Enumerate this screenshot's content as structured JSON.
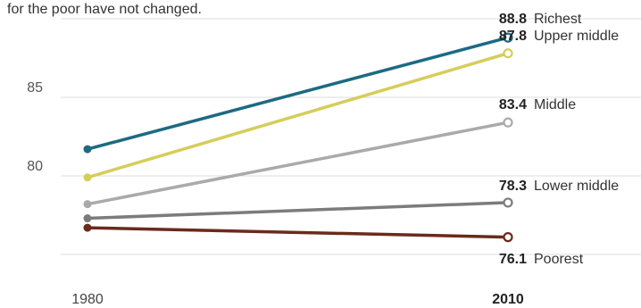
{
  "subtitle": "for the poor have not changed.",
  "chart_data": {
    "type": "line",
    "x": [
      "1980",
      "2010"
    ],
    "x_bold": [
      false,
      true
    ],
    "ylim": [
      72,
      90
    ],
    "yticks": [
      80,
      85
    ],
    "grid": true,
    "series": [
      {
        "name": "Richest",
        "values": [
          81.7,
          88.8
        ],
        "value_label": "88.8",
        "color": "#1d6a82"
      },
      {
        "name": "Upper middle",
        "values": [
          79.9,
          87.8
        ],
        "value_label": "87.8",
        "color": "#d6cd5a"
      },
      {
        "name": "Middle",
        "values": [
          78.2,
          83.4
        ],
        "value_label": "83.4",
        "color": "#aaaaaa"
      },
      {
        "name": "Lower middle",
        "values": [
          77.3,
          78.3
        ],
        "value_label": "78.3",
        "color": "#7c7c7c"
      },
      {
        "name": "Poorest",
        "values": [
          76.7,
          76.1
        ],
        "value_label": "76.1",
        "color": "#6b2a1c"
      }
    ]
  }
}
